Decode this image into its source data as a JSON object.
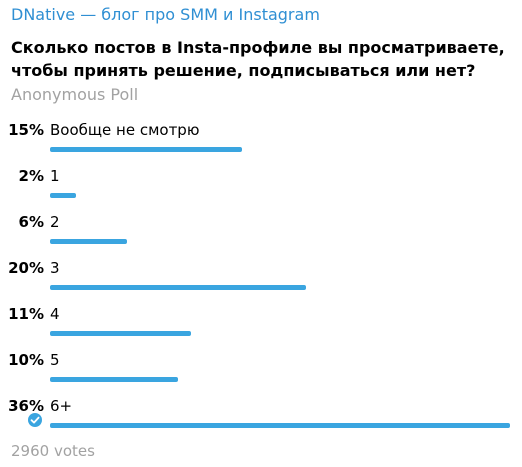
{
  "channel": {
    "title": "DNative — блог про SMM и Instagram"
  },
  "poll": {
    "question": "Сколько постов в Insta-профиле вы просматриваете, чтобы принять решение, подписываться или нет?",
    "type_label": "Anonymous Poll",
    "options": [
      {
        "percent_label": "15%",
        "label": "Вообще не смотрю",
        "percent": 15,
        "chosen": false
      },
      {
        "percent_label": "2%",
        "label": "1",
        "percent": 2,
        "chosen": false
      },
      {
        "percent_label": "6%",
        "label": "2",
        "percent": 6,
        "chosen": false
      },
      {
        "percent_label": "20%",
        "label": "3",
        "percent": 20,
        "chosen": false
      },
      {
        "percent_label": "11%",
        "label": "4",
        "percent": 11,
        "chosen": false
      },
      {
        "percent_label": "10%",
        "label": "5",
        "percent": 10,
        "chosen": false
      },
      {
        "percent_label": "36%",
        "label": "6+",
        "percent": 36,
        "chosen": true
      }
    ],
    "votes_label": "2960 votes"
  },
  "colors": {
    "accent": "#3aa5e0",
    "channel_title": "#2f8fd3",
    "muted": "#a2a2a2"
  },
  "icons": {
    "chosen": "check-circle-icon"
  }
}
